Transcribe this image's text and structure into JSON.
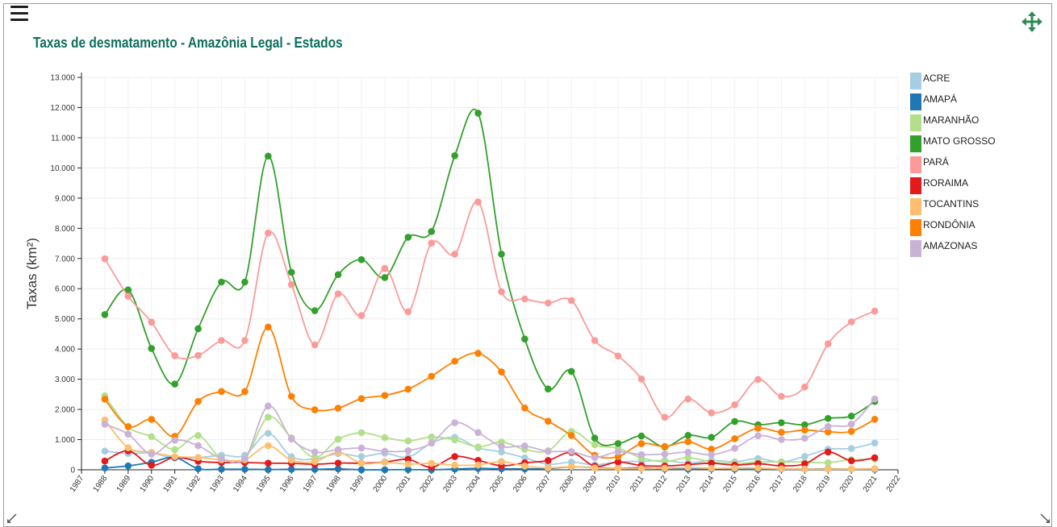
{
  "header": {
    "title": "Taxas de desmatamento - Amazônia Legal - Estados"
  },
  "icons": {
    "menu": "menu-icon",
    "move": "move-arrows-icon",
    "resize_left": "resize-diagonal-icon",
    "resize_right": "resize-diagonal-icon"
  },
  "chart_data": {
    "type": "line",
    "title": "Taxas de desmatamento - Amazônia Legal - Estados",
    "xlabel": "",
    "ylabel": "Taxas (km²)",
    "xlim": [
      1987,
      2022
    ],
    "ylim": [
      0,
      13000
    ],
    "y_ticks": [
      0,
      1000,
      2000,
      3000,
      4000,
      5000,
      6000,
      7000,
      8000,
      9000,
      10000,
      11000,
      12000,
      13000
    ],
    "y_tick_labels": [
      "0",
      "1.000",
      "2.000",
      "3.000",
      "4.000",
      "5.000",
      "6.000",
      "7.000",
      "8.000",
      "9.000",
      "10.000",
      "11.000",
      "12.000",
      "13.000"
    ],
    "x_ticks": [
      1987,
      1988,
      1989,
      1990,
      1991,
      1992,
      1993,
      1994,
      1995,
      1996,
      1997,
      1998,
      1999,
      2000,
      2001,
      2002,
      2003,
      2004,
      2005,
      2006,
      2007,
      2008,
      2009,
      2010,
      2011,
      2012,
      2013,
      2014,
      2015,
      2016,
      2017,
      2018,
      2019,
      2020,
      2021,
      2022
    ],
    "x_tick_labels": [
      "1987",
      "1988",
      "1989",
      "1990",
      "1991",
      "1992",
      "1993",
      "1994",
      "1995",
      "1996",
      "1997",
      "1998",
      "1999",
      "2000",
      "2001",
      "2002",
      "2003",
      "2004",
      "2005",
      "2006",
      "2007",
      "2008",
      "2009",
      "2010",
      "2011",
      "2012",
      "2013",
      "2014",
      "2015",
      "2016",
      "2017",
      "2018",
      "2019",
      "2020",
      "2021",
      "2022"
    ],
    "grid": true,
    "legend_position": "right",
    "x": [
      1988,
      1989,
      1990,
      1991,
      1992,
      1993,
      1994,
      1995,
      1996,
      1997,
      1998,
      1999,
      2000,
      2001,
      2002,
      2003,
      2004,
      2005,
      2006,
      2007,
      2008,
      2009,
      2010,
      2011,
      2012,
      2013,
      2014,
      2015,
      2016,
      2017,
      2018,
      2019,
      2020,
      2021
    ],
    "series": [
      {
        "name": "ACRE",
        "color": "#a6cee3",
        "values": [
          620,
          540,
          550,
          380,
          400,
          482,
          482,
          1208,
          433,
          358,
          536,
          441,
          547,
          419,
          883,
          1078,
          728,
          592,
          398,
          184,
          254,
          167,
          259,
          280,
          305,
          221,
          309,
          264,
          372,
          257,
          444,
          682,
          706,
          889
        ]
      },
      {
        "name": "AMAPÁ",
        "color": "#1f78b4",
        "values": [
          60,
          130,
          250,
          410,
          36,
          20,
          20,
          9,
          18,
          18,
          30,
          0,
          0,
          7,
          0,
          25,
          46,
          33,
          30,
          39,
          100,
          70,
          53,
          66,
          27,
          23,
          31,
          25,
          17,
          24,
          24,
          32,
          24,
          17
        ]
      },
      {
        "name": "MARANHÃO",
        "color": "#b2df8a",
        "values": [
          2450,
          1420,
          1100,
          670,
          1135,
          372,
          372,
          1745,
          1061,
          409,
          1012,
          1230,
          1065,
          958,
          1085,
          993,
          755,
          922,
          674,
          631,
          1271,
          828,
          712,
          396,
          269,
          403,
          257,
          209,
          258,
          265,
          253,
          237,
          336,
          350
        ]
      },
      {
        "name": "MATO GROSSO",
        "color": "#33a02c",
        "values": [
          5140,
          5960,
          4020,
          2840,
          4674,
          6220,
          6220,
          10391,
          6543,
          5271,
          6466,
          6963,
          6369,
          7703,
          7892,
          10405,
          11814,
          7145,
          4333,
          2678,
          3258,
          1049,
          871,
          1120,
          757,
          1139,
          1075,
          1601,
          1489,
          1561,
          1490,
          1702,
          1779,
          2263
        ]
      },
      {
        "name": "PARÁ",
        "color": "#fb9a99",
        "values": [
          6990,
          5750,
          4890,
          3780,
          3787,
          4284,
          4284,
          7845,
          6135,
          4139,
          5829,
          5111,
          6671,
          5237,
          7510,
          7145,
          8870,
          5899,
          5659,
          5526,
          5607,
          4281,
          3770,
          3008,
          1741,
          2346,
          1887,
          2153,
          2992,
          2433,
          2744,
          4172,
          4899,
          5257
        ]
      },
      {
        "name": "RORAIMA",
        "color": "#e31a1c",
        "values": [
          290,
          630,
          150,
          420,
          281,
          240,
          240,
          220,
          214,
          184,
          223,
          220,
          253,
          345,
          84,
          439,
          311,
          133,
          231,
          309,
          574,
          121,
          256,
          141,
          124,
          170,
          219,
          156,
          202,
          132,
          195,
          590,
          297,
          400
        ]
      },
      {
        "name": "TOCANTINS",
        "color": "#fdbf6f",
        "values": [
          1650,
          730,
          580,
          440,
          409,
          333,
          333,
          797,
          320,
          273,
          576,
          216,
          244,
          189,
          212,
          156,
          158,
          271,
          124,
          63,
          107,
          61,
          49,
          40,
          52,
          74,
          50,
          57,
          58,
          31,
          25,
          23,
          25,
          37
        ]
      },
      {
        "name": "RONDÔNIA",
        "color": "#ff7f00",
        "values": [
          2340,
          1430,
          1670,
          1110,
          2265,
          2595,
          2595,
          4730,
          2432,
          1986,
          2041,
          2358,
          2465,
          2673,
          3099,
          3597,
          3858,
          3244,
          2049,
          1611,
          1136,
          482,
          435,
          865,
          773,
          932,
          684,
          1030,
          1376,
          1243,
          1316,
          1257,
          1273,
          1673
        ]
      },
      {
        "name": "AMAZONAS",
        "color": "#cab2d6",
        "values": [
          1510,
          1180,
          520,
          980,
          799,
          370,
          370,
          2114,
          1023,
          589,
          670,
          720,
          612,
          634,
          885,
          1558,
          1232,
          775,
          788,
          610,
          604,
          405,
          595,
          502,
          523,
          583,
          500,
          712,
          1129,
          1001,
          1045,
          1434,
          1512,
          2347
        ]
      }
    ]
  }
}
